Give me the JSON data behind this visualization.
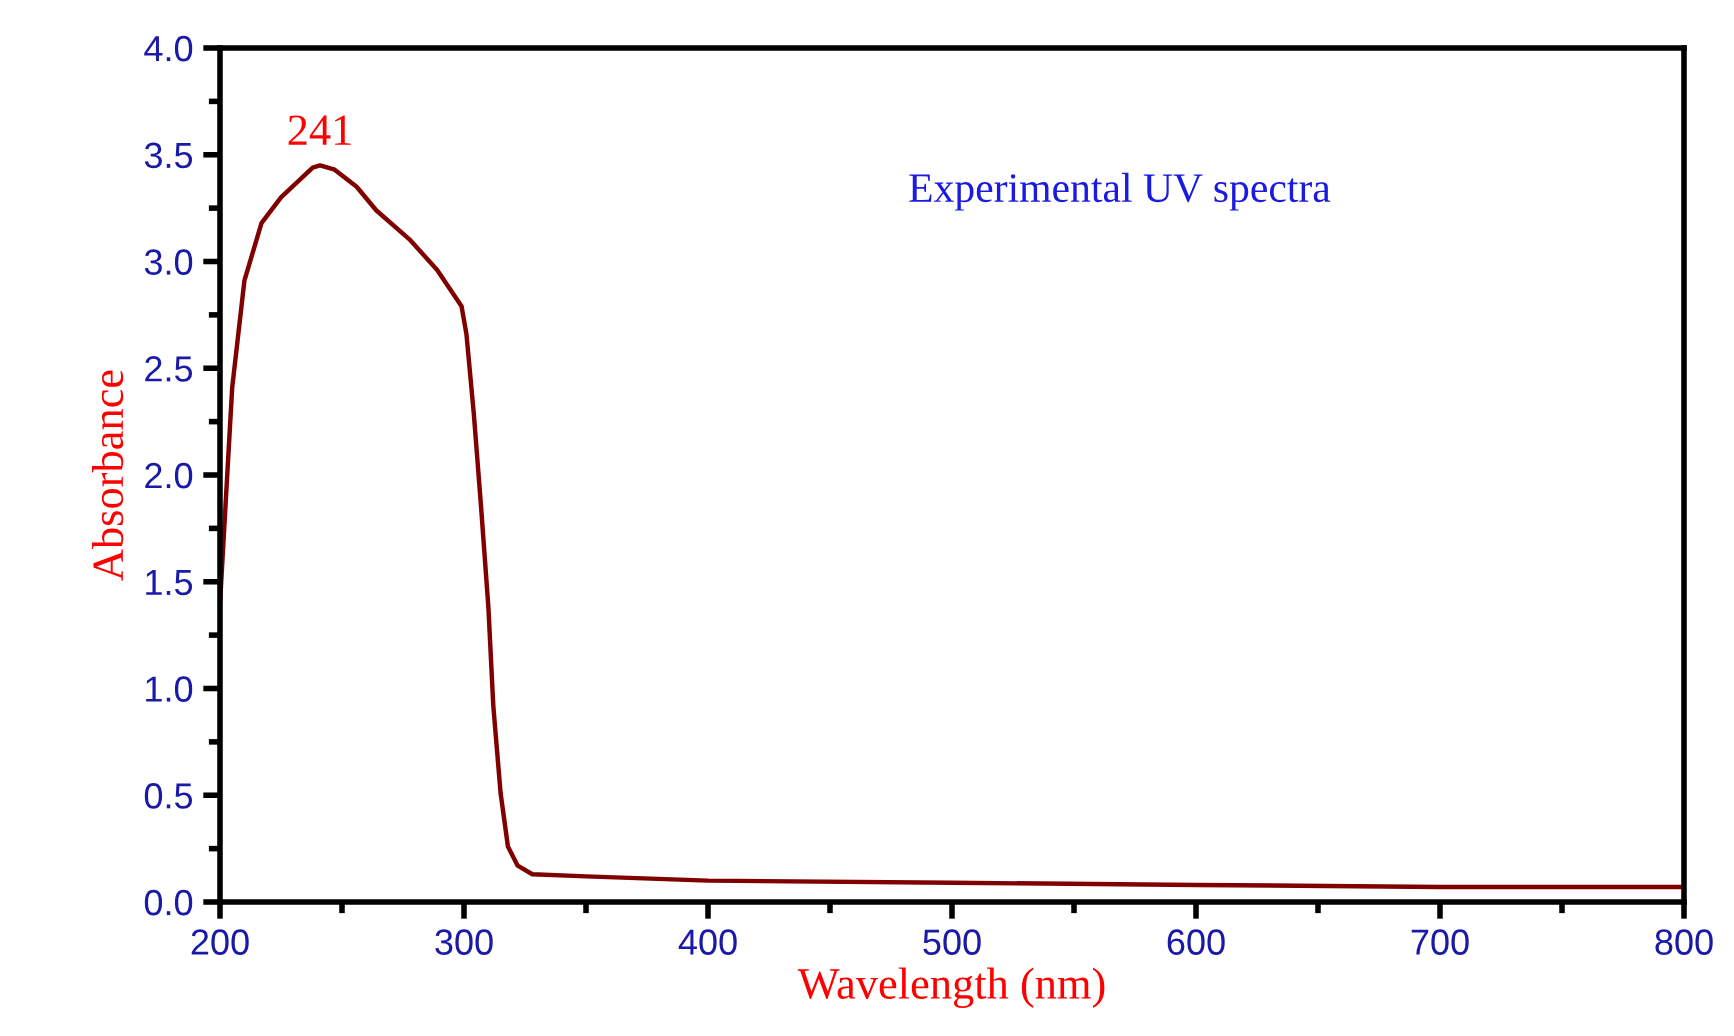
{
  "chart_data": {
    "type": "line",
    "xlabel": "Wavelength (nm)",
    "ylabel": "Absorbance",
    "xlim": [
      200,
      800
    ],
    "xticks": [
      200,
      300,
      400,
      500,
      600,
      700,
      800
    ],
    "ylim": [
      0,
      4.0
    ],
    "yticks": [
      {
        "value": 0,
        "label": "0.0"
      },
      {
        "value": 0.5,
        "label": "0.5"
      },
      {
        "value": 1.0,
        "label": "1.0"
      },
      {
        "value": 1.5,
        "label": "1.5"
      },
      {
        "value": 2.0,
        "label": "2.0"
      },
      {
        "value": 2.5,
        "label": "2.5"
      },
      {
        "value": 3.0,
        "label": "3.0"
      },
      {
        "value": 3.5,
        "label": "3.5"
      },
      {
        "value": 4.0,
        "label": "4.0"
      }
    ],
    "grid": false,
    "marker": "none",
    "line_style": "solid",
    "annotations": [
      {
        "text": "241",
        "x": 241,
        "y": 3.45
      },
      "Experimental UV spectra"
    ],
    "series": [
      {
        "color": "#800000",
        "x": [
          200,
          205,
          210,
          217,
          225,
          238,
          241,
          247,
          256,
          264,
          278,
          289,
          299,
          301,
          304,
          307,
          310,
          312,
          315,
          318,
          322,
          328,
          350,
          400,
          500,
          600,
          700,
          800
        ],
        "values": [
          1.4,
          2.41,
          2.91,
          3.18,
          3.3,
          3.44,
          3.45,
          3.43,
          3.35,
          3.24,
          3.1,
          2.96,
          2.79,
          2.66,
          2.29,
          1.85,
          1.38,
          0.92,
          0.51,
          0.26,
          0.17,
          0.13,
          0.12,
          0.1,
          0.09,
          0.08,
          0.07,
          0.07
        ]
      }
    ]
  }
}
